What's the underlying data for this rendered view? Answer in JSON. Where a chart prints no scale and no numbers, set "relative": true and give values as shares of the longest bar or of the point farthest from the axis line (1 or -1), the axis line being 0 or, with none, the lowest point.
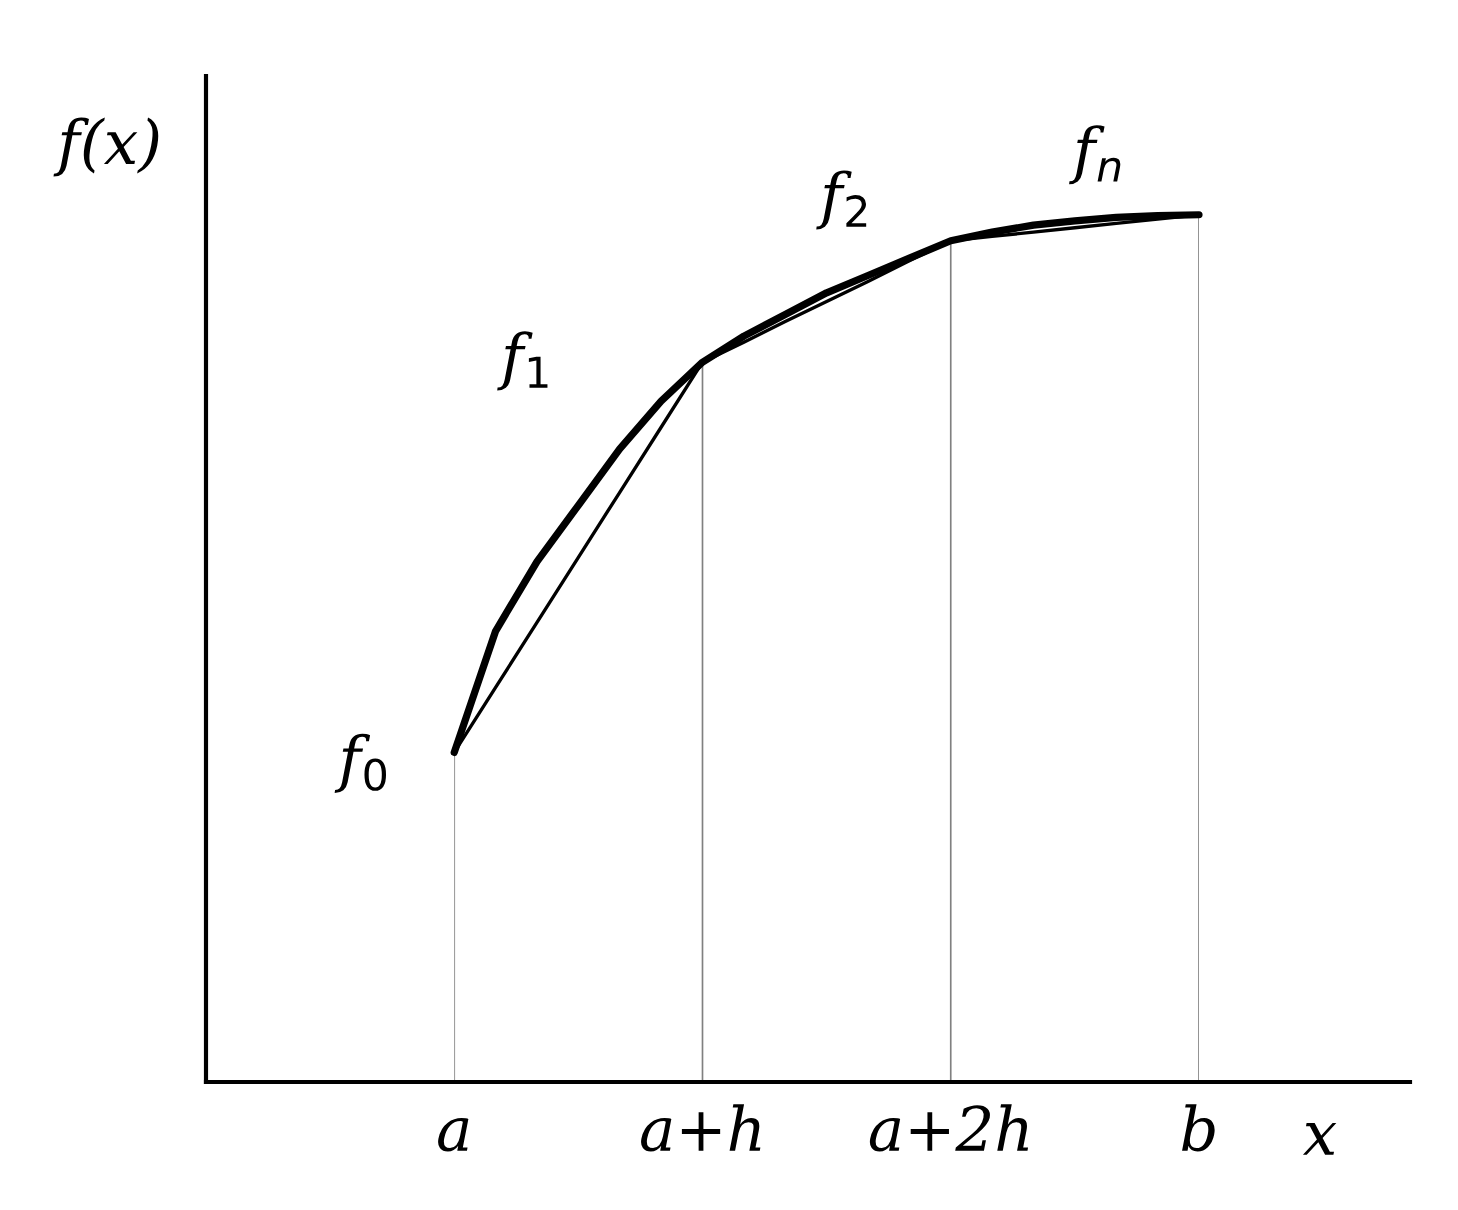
{
  "chart_data": {
    "type": "line",
    "relative": true,
    "xlabel": "x",
    "ylabel": "f(x)",
    "categories": [
      "a",
      null,
      null,
      null,
      null,
      null,
      "a+h",
      null,
      null,
      null,
      null,
      null,
      "a+2h",
      null,
      null,
      null,
      null,
      null,
      "b"
    ],
    "series": [
      {
        "color": "#000000",
        "values": [
          0.38,
          0.52,
          0.6,
          0.665,
          0.73,
          0.785,
          0.83,
          0.86,
          0.885,
          0.91,
          0.93,
          0.95,
          0.97,
          0.98,
          0.988,
          0.993,
          0.997,
          0.999,
          1.0
        ]
      },
      {
        "color": "#000000",
        "values": [
          0.38,
          0.455,
          0.53,
          0.605,
          0.68,
          0.755,
          0.83,
          0.853,
          0.877,
          0.9,
          0.923,
          0.947,
          0.97,
          0.975,
          0.98,
          0.985,
          0.99,
          0.995,
          1.0
        ]
      }
    ],
    "grid": "x",
    "annotations": [
      "f$_{0}$",
      "f$_{1}$",
      "f$_{2}$",
      "f$_{n}$"
    ]
  }
}
